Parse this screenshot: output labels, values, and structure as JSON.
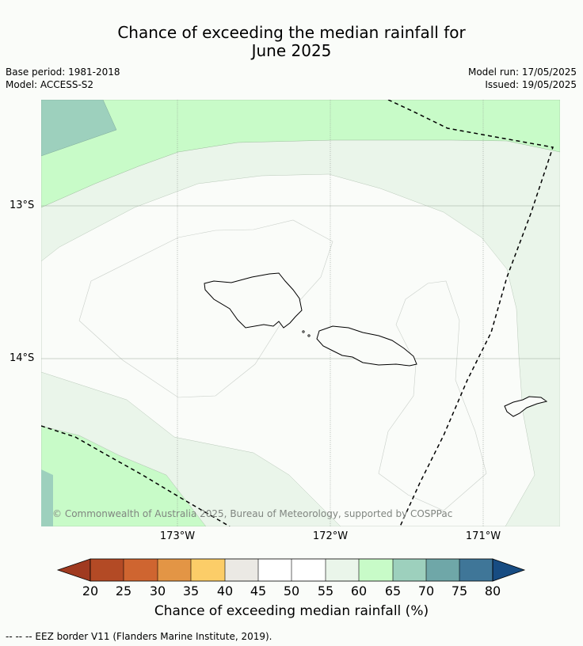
{
  "title_line1": "Chance of exceeding the median rainfall for",
  "title_line2": "June 2025",
  "meta": {
    "base_period": "Base period: 1981-2018",
    "model": "Model: ACCESS-S2",
    "model_run": "Model run: 17/05/2025",
    "issued": "Issued: 19/05/2025"
  },
  "axes": {
    "lat_13": "13°S",
    "lat_14": "14°S",
    "lon_173": "173°W",
    "lon_172": "172°W",
    "lon_171": "171°W"
  },
  "copyright": "© Commonwealth of Australia 2025, Bureau of Meteorology, supported by COSPPac",
  "colorbar": {
    "label": "Chance of exceeding median rainfall (%)",
    "ticks": [
      "20",
      "25",
      "30",
      "35",
      "40",
      "45",
      "50",
      "55",
      "60",
      "65",
      "70",
      "75",
      "80"
    ],
    "colors": [
      "#a03a20",
      "#b34a25",
      "#cf6530",
      "#e39545",
      "#fccd68",
      "#ebe9e4",
      "#ffffff",
      "#ffffff",
      "#eaf5ea",
      "#c8fbc8",
      "#9dd0bd",
      "#6fa7a8",
      "#3f7698",
      "#174c82"
    ]
  },
  "legend_note": "--  --  -- EEZ border V11 (Flanders Marine Institute, 2019).",
  "colors": {
    "land_fill": "#fafcf9",
    "zone_55_60": "#eaf5ea",
    "zone_60_65": "#c8fbc8",
    "zone_65_70": "#9dd0bd"
  }
}
